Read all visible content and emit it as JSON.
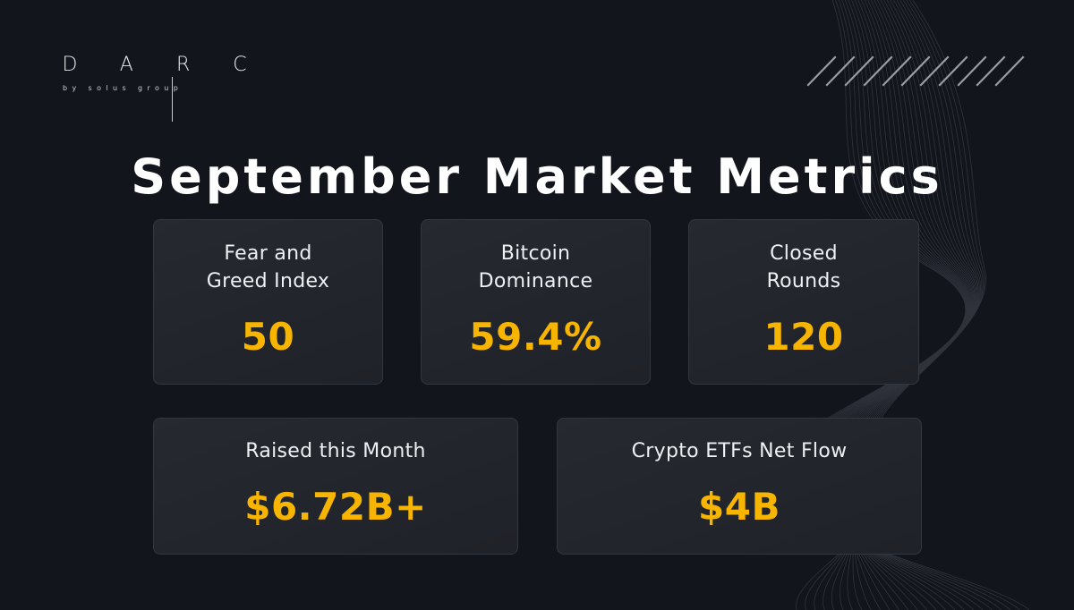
{
  "brand": {
    "letters": [
      "D",
      "A",
      "R",
      "C"
    ],
    "tagline": "by solus group"
  },
  "title": "September Market Metrics",
  "colors": {
    "background": "#12151c",
    "card": "#23262c",
    "accent": "#f7b500",
    "text": "#ffffff"
  },
  "metrics": [
    {
      "label_line1": "Fear and",
      "label_line2": "Greed Index",
      "value": "50"
    },
    {
      "label_line1": "Bitcoin",
      "label_line2": "Dominance",
      "value": "59.4%"
    },
    {
      "label_line1": "Closed",
      "label_line2": "Rounds",
      "value": "120"
    },
    {
      "label_line1": "Raised this Month",
      "value": "$6.72B+"
    },
    {
      "label_line1": "Crypto ETFs Net Flow",
      "value": "$4B"
    }
  ]
}
